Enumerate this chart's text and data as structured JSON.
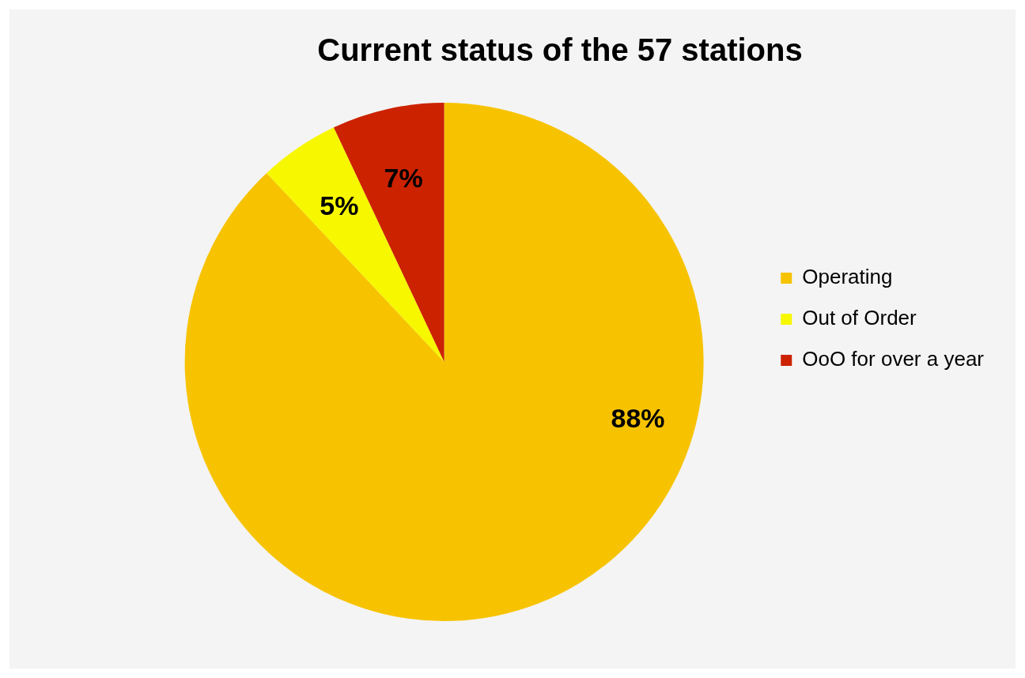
{
  "chart_data": {
    "type": "pie",
    "title": "Current status of the 57 stations",
    "categories": [
      "Operating",
      "Out of Order",
      "OoO for over a year"
    ],
    "values": [
      88,
      5,
      7
    ],
    "colors": [
      "#f7c300",
      "#f7f700",
      "#cc2200"
    ],
    "value_labels": [
      "88%",
      "5%",
      "7%"
    ],
    "legend": "right"
  }
}
